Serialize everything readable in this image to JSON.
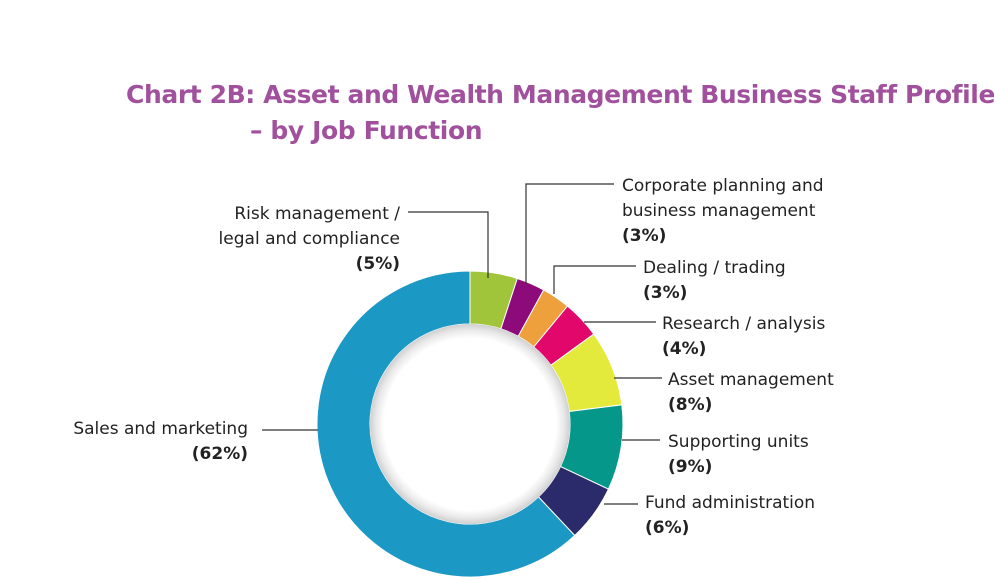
{
  "chart_data": {
    "type": "pie",
    "subtype": "donut",
    "title_lines": [
      "Chart 2B: Asset and Wealth Management Business Staff Profile",
      "– by Job Function"
    ],
    "slices": [
      {
        "label_lines": [
          "Risk management /",
          "legal and compliance"
        ],
        "value": 5,
        "pct_label": "(5%)",
        "color": "#a0c43a"
      },
      {
        "label_lines": [
          "Corporate planning and",
          "business management"
        ],
        "value": 3,
        "pct_label": "(3%)",
        "color": "#8c0a7a"
      },
      {
        "label_lines": [
          "Dealing / trading"
        ],
        "value": 3,
        "pct_label": "(3%)",
        "color": "#eda03b"
      },
      {
        "label_lines": [
          "Research / analysis"
        ],
        "value": 4,
        "pct_label": "(4%)",
        "color": "#e2086b"
      },
      {
        "label_lines": [
          "Asset management"
        ],
        "value": 8,
        "pct_label": "(8%)",
        "color": "#e3ea3c"
      },
      {
        "label_lines": [
          "Supporting units"
        ],
        "value": 9,
        "pct_label": "(9%)",
        "color": "#05978a"
      },
      {
        "label_lines": [
          "Fund administration"
        ],
        "value": 6,
        "pct_label": "(6%)",
        "color": "#2b2a6a"
      },
      {
        "label_lines": [
          "Sales and marketing"
        ],
        "value": 62,
        "pct_label": "(62%)",
        "color": "#1b98c4"
      }
    ]
  }
}
